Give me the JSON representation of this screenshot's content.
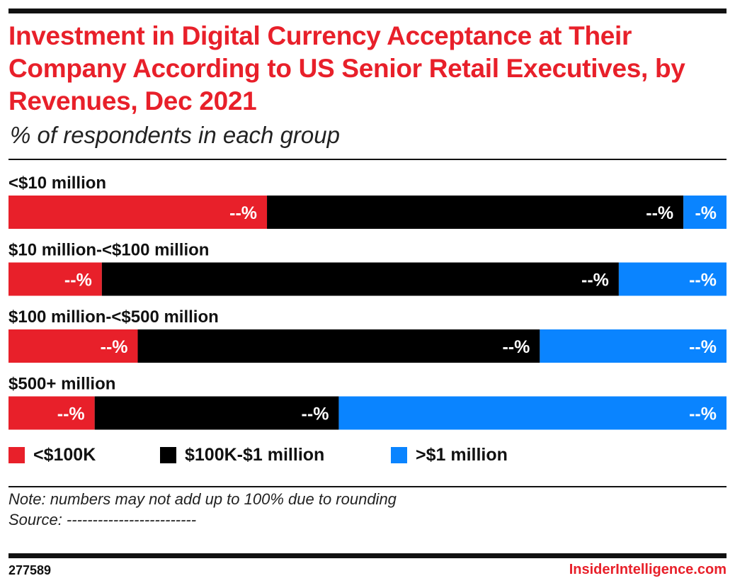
{
  "title": "Investment in Digital Currency Acceptance at Their Company According to US Senior Retail Executives, by Revenues, Dec 2021",
  "subtitle": "% of respondents in each group",
  "note": "Note: numbers may not add up to 100% due to rounding",
  "source": "Source: -------------------------",
  "chart_id": "277589",
  "brand": "InsiderIntelligence.com",
  "colors": {
    "accent": "#e8202a",
    "series": [
      "#e8202a",
      "#000000",
      "#0a84ff"
    ]
  },
  "chart_data": {
    "type": "bar",
    "orientation": "horizontal",
    "stacked": true,
    "normalized_to": 100,
    "categories": [
      "<$10 million",
      "$10 million-<$100 million",
      "$100 million-<$500 million",
      "$500+ million"
    ],
    "series": [
      {
        "name": "<$100K",
        "color": "#e8202a",
        "values": [
          36,
          13,
          18,
          12
        ],
        "labels": [
          "--%",
          "--%",
          "--%",
          "--%"
        ]
      },
      {
        "name": "$100K-$1 million",
        "color": "#000000",
        "values": [
          58,
          72,
          56,
          34
        ],
        "labels": [
          "--%",
          "--%",
          "--%",
          "--%"
        ]
      },
      {
        "name": ">$1 million",
        "color": "#0a84ff",
        "values": [
          6,
          15,
          26,
          54
        ],
        "labels": [
          "-%",
          "--%",
          "--%",
          "--%"
        ]
      }
    ],
    "legend": "bottom-left"
  }
}
